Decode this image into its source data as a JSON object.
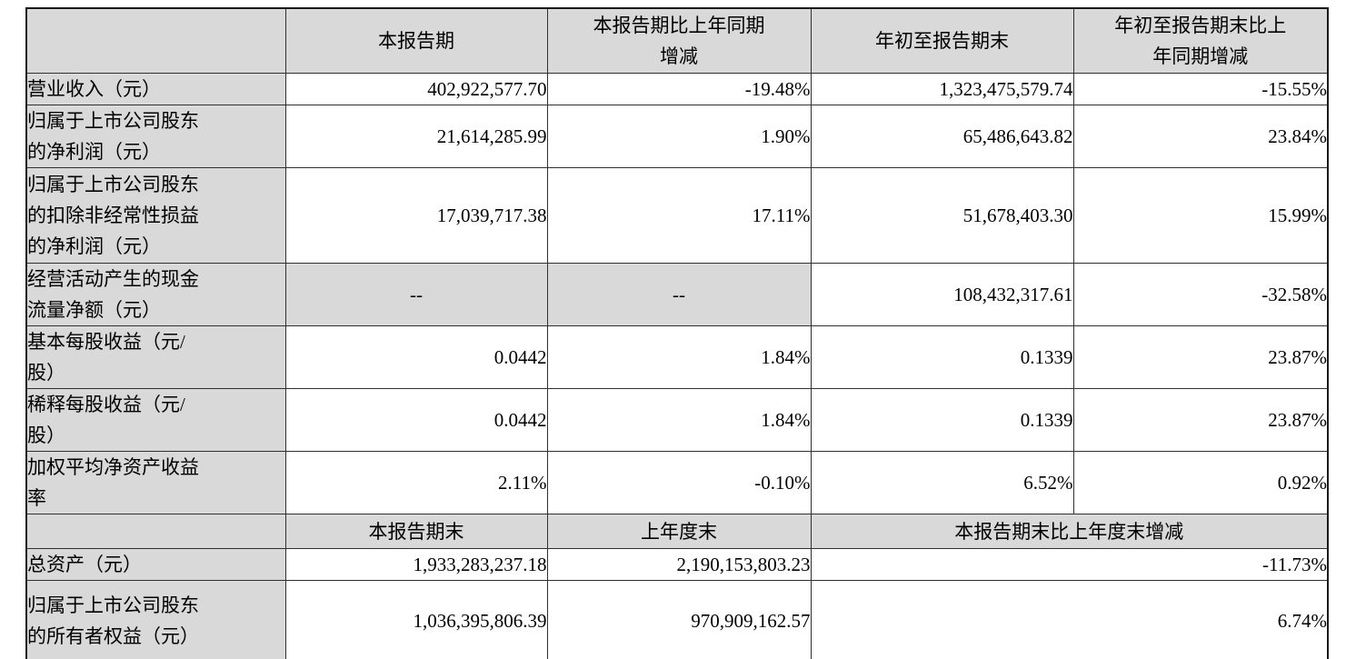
{
  "colors": {
    "header_fill": "#d9d9d9",
    "cell_fill": "#ffffff",
    "border": "#303030",
    "text": "#000000"
  },
  "table": {
    "header1": {
      "c1": "",
      "c2": "本报告期",
      "c3": "本报告期比上年同期\n增减",
      "c4": "年初至报告期末",
      "c5": "年初至报告期末比上\n年同期增减"
    },
    "rows": [
      {
        "label": "营业收入（元）",
        "current": "402,922,577.70",
        "current_yoy": "-19.48%",
        "ytd": "1,323,475,579.74",
        "ytd_yoy": "-15.55%"
      },
      {
        "label": "归属于上市公司股东\n的净利润（元）",
        "current": "21,614,285.99",
        "current_yoy": "1.90%",
        "ytd": "65,486,643.82",
        "ytd_yoy": "23.84%"
      },
      {
        "label": "归属于上市公司股东\n的扣除非经常性损益\n的净利润（元）",
        "current": "17,039,717.38",
        "current_yoy": "17.11%",
        "ytd": "51,678,403.30",
        "ytd_yoy": "15.99%"
      },
      {
        "label": "经营活动产生的现金\n流量净额（元）",
        "current": "--",
        "current_yoy": "--",
        "ytd": "108,432,317.61",
        "ytd_yoy": "-32.58%"
      },
      {
        "label": "基本每股收益（元/\n股）",
        "current": "0.0442",
        "current_yoy": "1.84%",
        "ytd": "0.1339",
        "ytd_yoy": "23.87%"
      },
      {
        "label": "稀释每股收益（元/\n股）",
        "current": "0.0442",
        "current_yoy": "1.84%",
        "ytd": "0.1339",
        "ytd_yoy": "23.87%"
      },
      {
        "label": "加权平均净资产收益\n率",
        "current": "2.11%",
        "current_yoy": "-0.10%",
        "ytd": "6.52%",
        "ytd_yoy": "0.92%"
      }
    ],
    "header2": {
      "c1": "",
      "c2": "本报告期末",
      "c3": "上年度末",
      "c45": "本报告期末比上年度末增减"
    },
    "bottom_rows": [
      {
        "label": "总资产（元）",
        "end_of_period": "1,933,283,237.18",
        "end_of_last_year": "2,190,153,803.23",
        "change": "-11.73%"
      },
      {
        "label": "归属于上市公司股东\n的所有者权益（元）",
        "end_of_period": "1,036,395,806.39",
        "end_of_last_year": "970,909,162.57",
        "change": "6.74%"
      }
    ]
  }
}
